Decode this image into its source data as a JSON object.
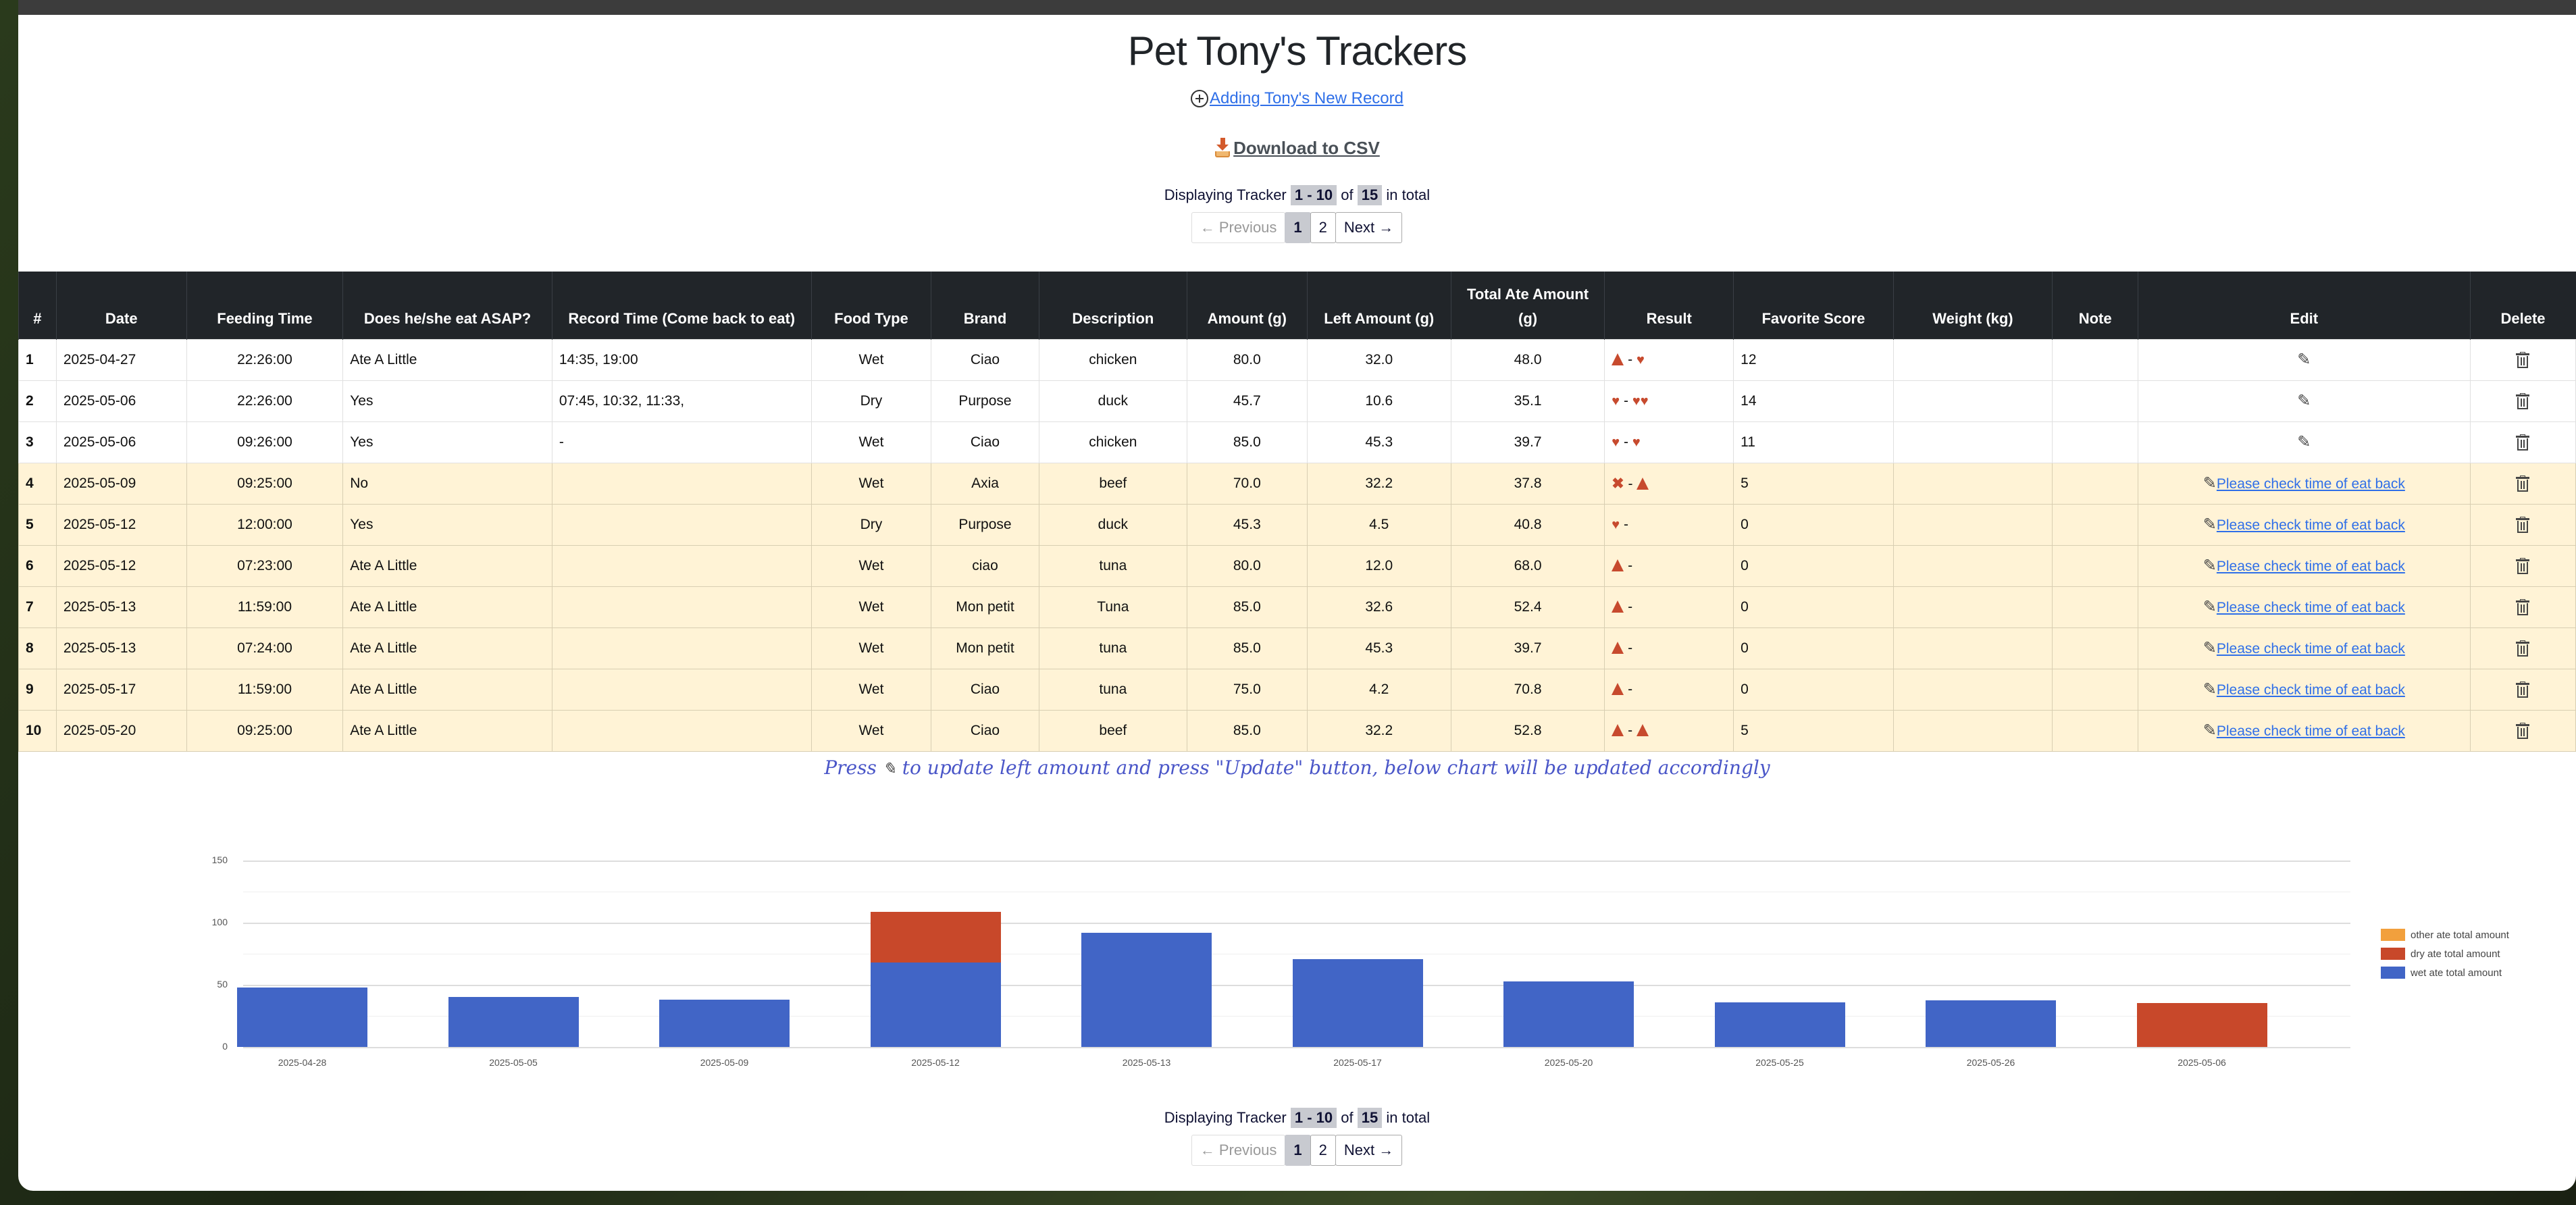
{
  "page": {
    "title": "Pet Tony's Trackers",
    "add_record_link": "Adding Tony's New Record",
    "download_csv": "Download to CSV"
  },
  "pagination_top": {
    "prefix": "Displaying Tracker",
    "range": "1 - 10",
    "of": "of",
    "total": "15",
    "suffix": "in total",
    "prev": "← Previous",
    "pages": [
      "1",
      "2"
    ],
    "active_page": "1",
    "next": "Next →"
  },
  "pagination_bottom": {
    "prefix": "Displaying Tracker",
    "range": "1 - 10",
    "of": "of",
    "total": "15",
    "suffix": "in total",
    "prev": "← Previous",
    "pages": [
      "1",
      "2"
    ],
    "active_page": "1",
    "next": "Next →"
  },
  "table": {
    "headers": [
      "#",
      "Date",
      "Feeding Time",
      "Does he/she eat ASAP?",
      "Record Time (Come back to eat)",
      "Food Type",
      "Brand",
      "Description",
      "Amount (g)",
      "Left Amount (g)",
      "Total Ate Amount (g)",
      "Result",
      "Favorite Score",
      "Weight (kg)",
      "Note",
      "Edit",
      "Delete"
    ],
    "rows": [
      {
        "n": "1",
        "date": "2025-04-27",
        "time": "22:26:00",
        "asap": "Ate A Little",
        "record": "14:35, 19:00",
        "type": "Wet",
        "brand": "Ciao",
        "desc": "chicken",
        "amount": "80.0",
        "left": "32.0",
        "total": "48.0",
        "result": [
          "triangle",
          "-",
          "heart"
        ],
        "score": "12",
        "weight": "",
        "note": "",
        "edit_text": "",
        "warn": false
      },
      {
        "n": "2",
        "date": "2025-05-06",
        "time": "22:26:00",
        "asap": "Yes",
        "record": "07:45, 10:32, 11:33,",
        "type": "Dry",
        "brand": "Purpose",
        "desc": "duck",
        "amount": "45.7",
        "left": "10.6",
        "total": "35.1",
        "result": [
          "heart",
          "-",
          "heart",
          "heart"
        ],
        "score": "14",
        "weight": "",
        "note": "",
        "edit_text": "",
        "warn": false
      },
      {
        "n": "3",
        "date": "2025-05-06",
        "time": "09:26:00",
        "asap": "Yes",
        "record": "-",
        "type": "Wet",
        "brand": "Ciao",
        "desc": "chicken",
        "amount": "85.0",
        "left": "45.3",
        "total": "39.7",
        "result": [
          "heart",
          "-",
          "heart"
        ],
        "score": "11",
        "weight": "",
        "note": "",
        "edit_text": "",
        "warn": false
      },
      {
        "n": "4",
        "date": "2025-05-09",
        "time": "09:25:00",
        "asap": "No",
        "record": "",
        "type": "Wet",
        "brand": "Axia",
        "desc": "beef",
        "amount": "70.0",
        "left": "32.2",
        "total": "37.8",
        "result": [
          "x",
          "-",
          "triangle"
        ],
        "score": "5",
        "weight": "",
        "note": "",
        "edit_text": "Please check time of eat back",
        "warn": true
      },
      {
        "n": "5",
        "date": "2025-05-12",
        "time": "12:00:00",
        "asap": "Yes",
        "record": "",
        "type": "Dry",
        "brand": "Purpose",
        "desc": "duck",
        "amount": "45.3",
        "left": "4.5",
        "total": "40.8",
        "result": [
          "heart",
          "-"
        ],
        "score": "0",
        "weight": "",
        "note": "",
        "edit_text": "Please check time of eat back",
        "warn": true
      },
      {
        "n": "6",
        "date": "2025-05-12",
        "time": "07:23:00",
        "asap": "Ate A Little",
        "record": "",
        "type": "Wet",
        "brand": "ciao",
        "desc": "tuna",
        "amount": "80.0",
        "left": "12.0",
        "total": "68.0",
        "result": [
          "triangle",
          "-"
        ],
        "score": "0",
        "weight": "",
        "note": "",
        "edit_text": "Please check time of eat back",
        "warn": true
      },
      {
        "n": "7",
        "date": "2025-05-13",
        "time": "11:59:00",
        "asap": "Ate A Little",
        "record": "",
        "type": "Wet",
        "brand": "Mon petit",
        "desc": "Tuna",
        "amount": "85.0",
        "left": "32.6",
        "total": "52.4",
        "result": [
          "triangle",
          "-"
        ],
        "score": "0",
        "weight": "",
        "note": "",
        "edit_text": "Please check time of eat back",
        "warn": true
      },
      {
        "n": "8",
        "date": "2025-05-13",
        "time": "07:24:00",
        "asap": "Ate A Little",
        "record": "",
        "type": "Wet",
        "brand": "Mon petit",
        "desc": "tuna",
        "amount": "85.0",
        "left": "45.3",
        "total": "39.7",
        "result": [
          "triangle",
          "-"
        ],
        "score": "0",
        "weight": "",
        "note": "",
        "edit_text": "Please check time of eat back",
        "warn": true
      },
      {
        "n": "9",
        "date": "2025-05-17",
        "time": "11:59:00",
        "asap": "Ate A Little",
        "record": "",
        "type": "Wet",
        "brand": "Ciao",
        "desc": "tuna",
        "amount": "75.0",
        "left": "4.2",
        "total": "70.8",
        "result": [
          "triangle",
          "-"
        ],
        "score": "0",
        "weight": "",
        "note": "",
        "edit_text": "Please check time of eat back",
        "warn": true
      },
      {
        "n": "10",
        "date": "2025-05-20",
        "time": "09:25:00",
        "asap": "Ate A Little",
        "record": "",
        "type": "Wet",
        "brand": "Ciao",
        "desc": "beef",
        "amount": "85.0",
        "left": "32.2",
        "total": "52.8",
        "result": [
          "triangle",
          "-",
          "triangle"
        ],
        "score": "5",
        "weight": "",
        "note": "",
        "edit_text": "Please check time of eat back",
        "warn": true
      }
    ]
  },
  "hint": {
    "before": "Press",
    "after": "to update left amount and press \"Update\" button, below chart will be updated accordingly"
  },
  "icons": {
    "add": "plus-circle-icon",
    "download": "download-icon",
    "edit": "pencil-icon",
    "delete": "trash-icon",
    "result_triangle": "red-triangle-icon",
    "result_heart": "heart-icon",
    "result_x": "cross-icon"
  },
  "colors": {
    "header_bg": "#212529",
    "warn_row_bg": "#fff3d6",
    "link": "#2f6fe8",
    "hint": "#4a56c8",
    "wet": "#4165c6",
    "dry": "#c8482a",
    "other": "#f2a03d"
  },
  "chart_data": {
    "type": "bar",
    "stacked": true,
    "title": "",
    "xlabel": "",
    "ylabel": "",
    "ylim": [
      0,
      150
    ],
    "yticks": [
      0,
      50,
      100,
      150
    ],
    "grid": true,
    "legend_position": "right",
    "categories": [
      "2025-04-28",
      "2025-05-05",
      "2025-05-09",
      "2025-05-12",
      "2025-05-13",
      "2025-05-17",
      "2025-05-20",
      "2025-05-25",
      "2025-05-26",
      "2025-05-06"
    ],
    "series": [
      {
        "name": "wet ate total amount",
        "color": "#4165c6",
        "values": [
          48,
          40,
          37.8,
          68,
          92,
          70.8,
          52.8,
          36,
          37.5,
          0
        ]
      },
      {
        "name": "dry ate total amount",
        "color": "#c8482a",
        "values": [
          0,
          0,
          0,
          40.8,
          0,
          0,
          0,
          0,
          0,
          35.1
        ]
      },
      {
        "name": "other ate total amount",
        "color": "#f2a03d",
        "values": [
          0,
          0,
          0,
          0,
          0,
          0,
          0,
          0,
          0,
          0
        ]
      }
    ],
    "legend": [
      "other ate total amount",
      "dry ate total amount",
      "wet ate total amount"
    ]
  }
}
